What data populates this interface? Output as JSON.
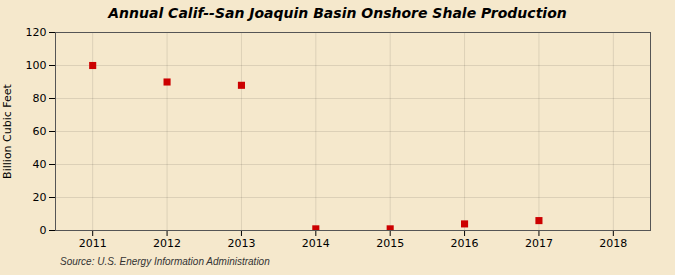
{
  "chart_data": {
    "type": "scatter",
    "title": "Annual Calif--San Joaquin Basin Onshore Shale Production",
    "ylabel": "Billion Cubic Feet",
    "caption": "Source: U.S. Energy Information Administration",
    "x": [
      2011,
      2012,
      2013,
      2014,
      2015,
      2016,
      2017
    ],
    "values": [
      100,
      90,
      88,
      1,
      1,
      4,
      6
    ],
    "color": "#cc0000",
    "marker": "square",
    "xlim": [
      2010.5,
      2018.5
    ],
    "ylim": [
      0,
      120
    ],
    "xticks": [
      2011,
      2012,
      2013,
      2014,
      2015,
      2016,
      2017,
      2018
    ],
    "yticks": [
      0,
      20,
      40,
      60,
      80,
      100,
      120
    ],
    "grid": true
  }
}
